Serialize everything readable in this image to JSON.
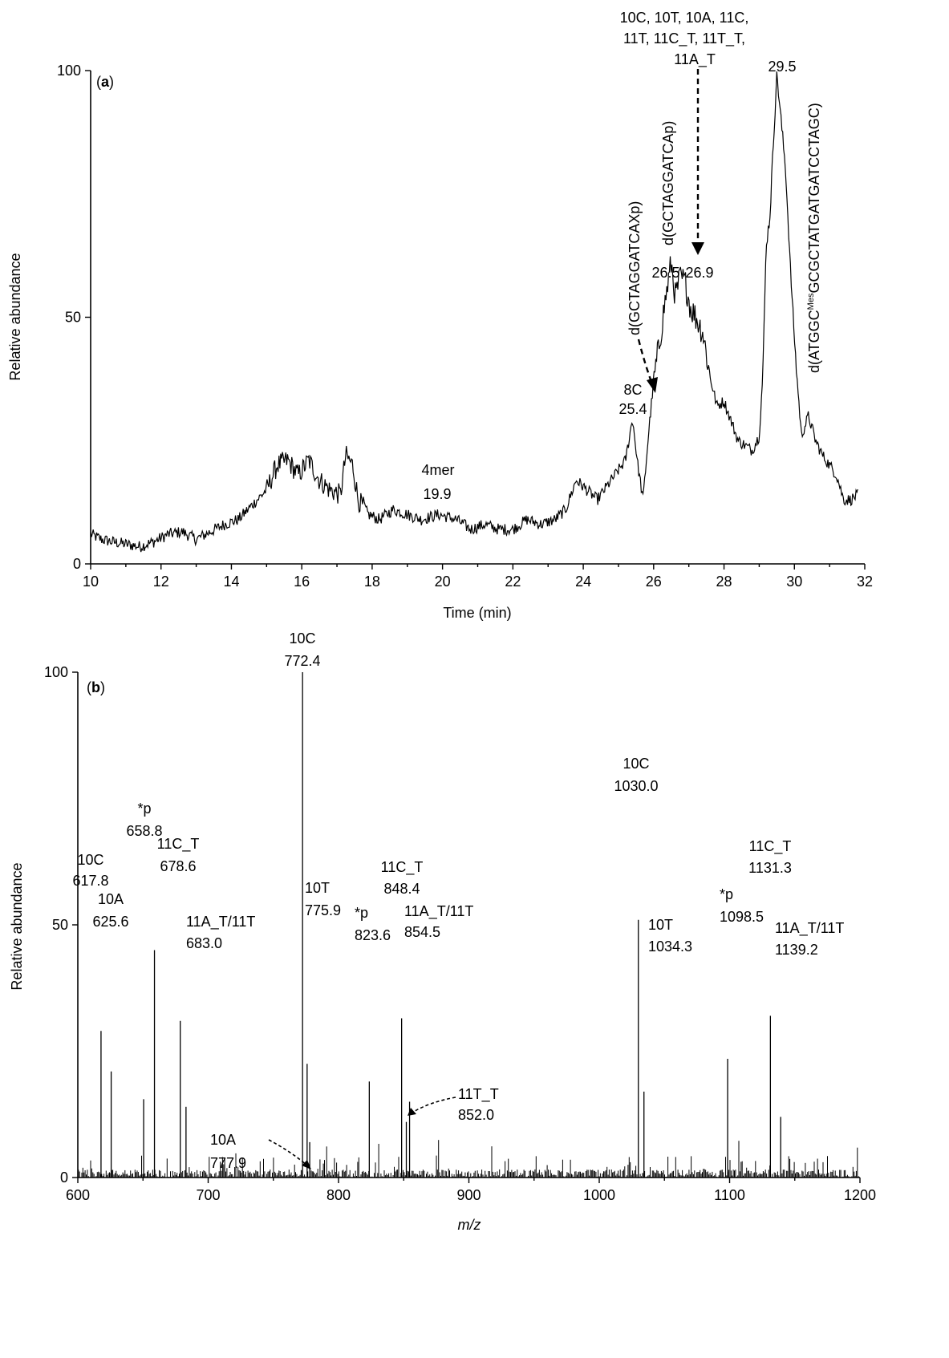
{
  "chart_data": [
    {
      "type": "line",
      "panel_label": "a",
      "xlabel": "Time (min)",
      "ylabel": "Relative abundance",
      "xlim": [
        10,
        32
      ],
      "ylim": [
        0,
        100
      ],
      "x_ticks": [
        "10",
        "12",
        "14",
        "16",
        "18",
        "20",
        "22",
        "24",
        "26",
        "28",
        "30",
        "32"
      ],
      "y_ticks": [
        "0",
        "50",
        "100"
      ],
      "anchors": [
        [
          10.0,
          6
        ],
        [
          10.3,
          5
        ],
        [
          10.6,
          4.5
        ],
        [
          11.0,
          4
        ],
        [
          11.4,
          3.5
        ],
        [
          11.8,
          4.5
        ],
        [
          12.2,
          6
        ],
        [
          12.6,
          6.5
        ],
        [
          13.0,
          5
        ],
        [
          13.4,
          6.5
        ],
        [
          13.8,
          8
        ],
        [
          14.2,
          9
        ],
        [
          14.6,
          12
        ],
        [
          15.0,
          15
        ],
        [
          15.3,
          20
        ],
        [
          15.6,
          21
        ],
        [
          15.9,
          18
        ],
        [
          16.2,
          21
        ],
        [
          16.5,
          17
        ],
        [
          16.8,
          15
        ],
        [
          17.1,
          14
        ],
        [
          17.25,
          22
        ],
        [
          17.45,
          20
        ],
        [
          17.6,
          13
        ],
        [
          17.9,
          10
        ],
        [
          18.2,
          9
        ],
        [
          18.6,
          11
        ],
        [
          19.0,
          10
        ],
        [
          19.4,
          9
        ],
        [
          19.9,
          10
        ],
        [
          20.4,
          9
        ],
        [
          20.8,
          7
        ],
        [
          21.2,
          8
        ],
        [
          21.6,
          7
        ],
        [
          22.0,
          7
        ],
        [
          22.4,
          9
        ],
        [
          22.8,
          8
        ],
        [
          23.2,
          9
        ],
        [
          23.5,
          11
        ],
        [
          23.8,
          17
        ],
        [
          24.1,
          15
        ],
        [
          24.4,
          13
        ],
        [
          24.7,
          16
        ],
        [
          25.0,
          19
        ],
        [
          25.2,
          21
        ],
        [
          25.4,
          29.5
        ],
        [
          25.55,
          20
        ],
        [
          25.7,
          13
        ],
        [
          25.85,
          26
        ],
        [
          26.0,
          37
        ],
        [
          26.15,
          44
        ],
        [
          26.3,
          52
        ],
        [
          26.5,
          61
        ],
        [
          26.62,
          54
        ],
        [
          26.75,
          58
        ],
        [
          26.9,
          57
        ],
        [
          27.05,
          52
        ],
        [
          27.2,
          50
        ],
        [
          27.4,
          47
        ],
        [
          27.6,
          38
        ],
        [
          27.8,
          32
        ],
        [
          28.0,
          33
        ],
        [
          28.2,
          29
        ],
        [
          28.4,
          25
        ],
        [
          28.6,
          24
        ],
        [
          28.8,
          23
        ],
        [
          29.0,
          26
        ],
        [
          29.1,
          38
        ],
        [
          29.2,
          65
        ],
        [
          29.3,
          70
        ],
        [
          29.42,
          88
        ],
        [
          29.5,
          99.5
        ],
        [
          29.62,
          90
        ],
        [
          29.75,
          80
        ],
        [
          29.9,
          58
        ],
        [
          30.05,
          40
        ],
        [
          30.2,
          26
        ],
        [
          30.4,
          30
        ],
        [
          30.6,
          25
        ],
        [
          30.8,
          22
        ],
        [
          31.0,
          20
        ],
        [
          31.2,
          18
        ],
        [
          31.4,
          13
        ],
        [
          31.6,
          13
        ],
        [
          31.8,
          14
        ]
      ],
      "annotations": {
        "peak_4mer": {
          "label": "4mer",
          "value": "19.9"
        },
        "peak_8C": {
          "label": "8C",
          "value": "25.4"
        },
        "peak_265": {
          "value": "26.5"
        },
        "peak_269": {
          "value": "26.9"
        },
        "peak_295": {
          "value": "29.5"
        },
        "frag_list_1": "10C, 10T, 10A, 11C,",
        "frag_list_2": "11T, 11C_T, 11T_T,",
        "frag_list_3": "11A_T",
        "vert_label_1": "d(GCTAGGATCAXp)",
        "vert_label_2": "d(GCTAGGATCAp)",
        "vert_label_3_pre": "d(ATGGC",
        "vert_label_3_sup": "Mes",
        "vert_label_3_post": "GCGCTATGATGATCCTAGC)"
      }
    },
    {
      "type": "bar",
      "panel_label": "b",
      "xlabel": "m/z",
      "ylabel": "Relative abundance",
      "xlim": [
        600,
        1200
      ],
      "ylim": [
        0,
        100
      ],
      "x_ticks": [
        "600",
        "700",
        "800",
        "900",
        "1000",
        "1100",
        "1200"
      ],
      "y_ticks": [
        "0",
        "50",
        "100"
      ],
      "peaks": [
        {
          "mz": 617.8,
          "y": 29,
          "name": "10C",
          "value": "617.8"
        },
        {
          "mz": 625.6,
          "y": 21,
          "name": "10A",
          "value": "625.6"
        },
        {
          "mz": 650.5,
          "y": 15.5,
          "name": "",
          "value": ""
        },
        {
          "mz": 658.8,
          "y": 45,
          "name": "*p",
          "value": "658.8"
        },
        {
          "mz": 678.6,
          "y": 31,
          "name": "11C_T",
          "value": "678.6"
        },
        {
          "mz": 683.0,
          "y": 14,
          "name": "11A_T/11T",
          "value": "683.0"
        },
        {
          "mz": 772.4,
          "y": 100,
          "name": "10C",
          "value": "772.4"
        },
        {
          "mz": 775.9,
          "y": 22.5,
          "name": "10T",
          "value": "775.9"
        },
        {
          "mz": 777.9,
          "y": 7,
          "name": "10A",
          "value": "777.9"
        },
        {
          "mz": 823.6,
          "y": 19,
          "name": "*p",
          "value": "823.6"
        },
        {
          "mz": 848.4,
          "y": 31.5,
          "name": "11C_T",
          "value": "848.4"
        },
        {
          "mz": 852.0,
          "y": 11,
          "name": "11T_T",
          "value": "852.0"
        },
        {
          "mz": 854.5,
          "y": 15,
          "name": "11A_T/11T",
          "value": "854.5"
        },
        {
          "mz": 1030.0,
          "y": 51,
          "name": "10C",
          "value": "1030.0"
        },
        {
          "mz": 1034.3,
          "y": 17,
          "name": "10T",
          "value": "1034.3"
        },
        {
          "mz": 1098.5,
          "y": 23.5,
          "name": "*p",
          "value": "1098.5"
        },
        {
          "mz": 1131.3,
          "y": 32,
          "name": "11C_T",
          "value": "1131.3"
        },
        {
          "mz": 1139.2,
          "y": 12,
          "name": "11A_T/11T",
          "value": "1139.2"
        }
      ]
    }
  ]
}
